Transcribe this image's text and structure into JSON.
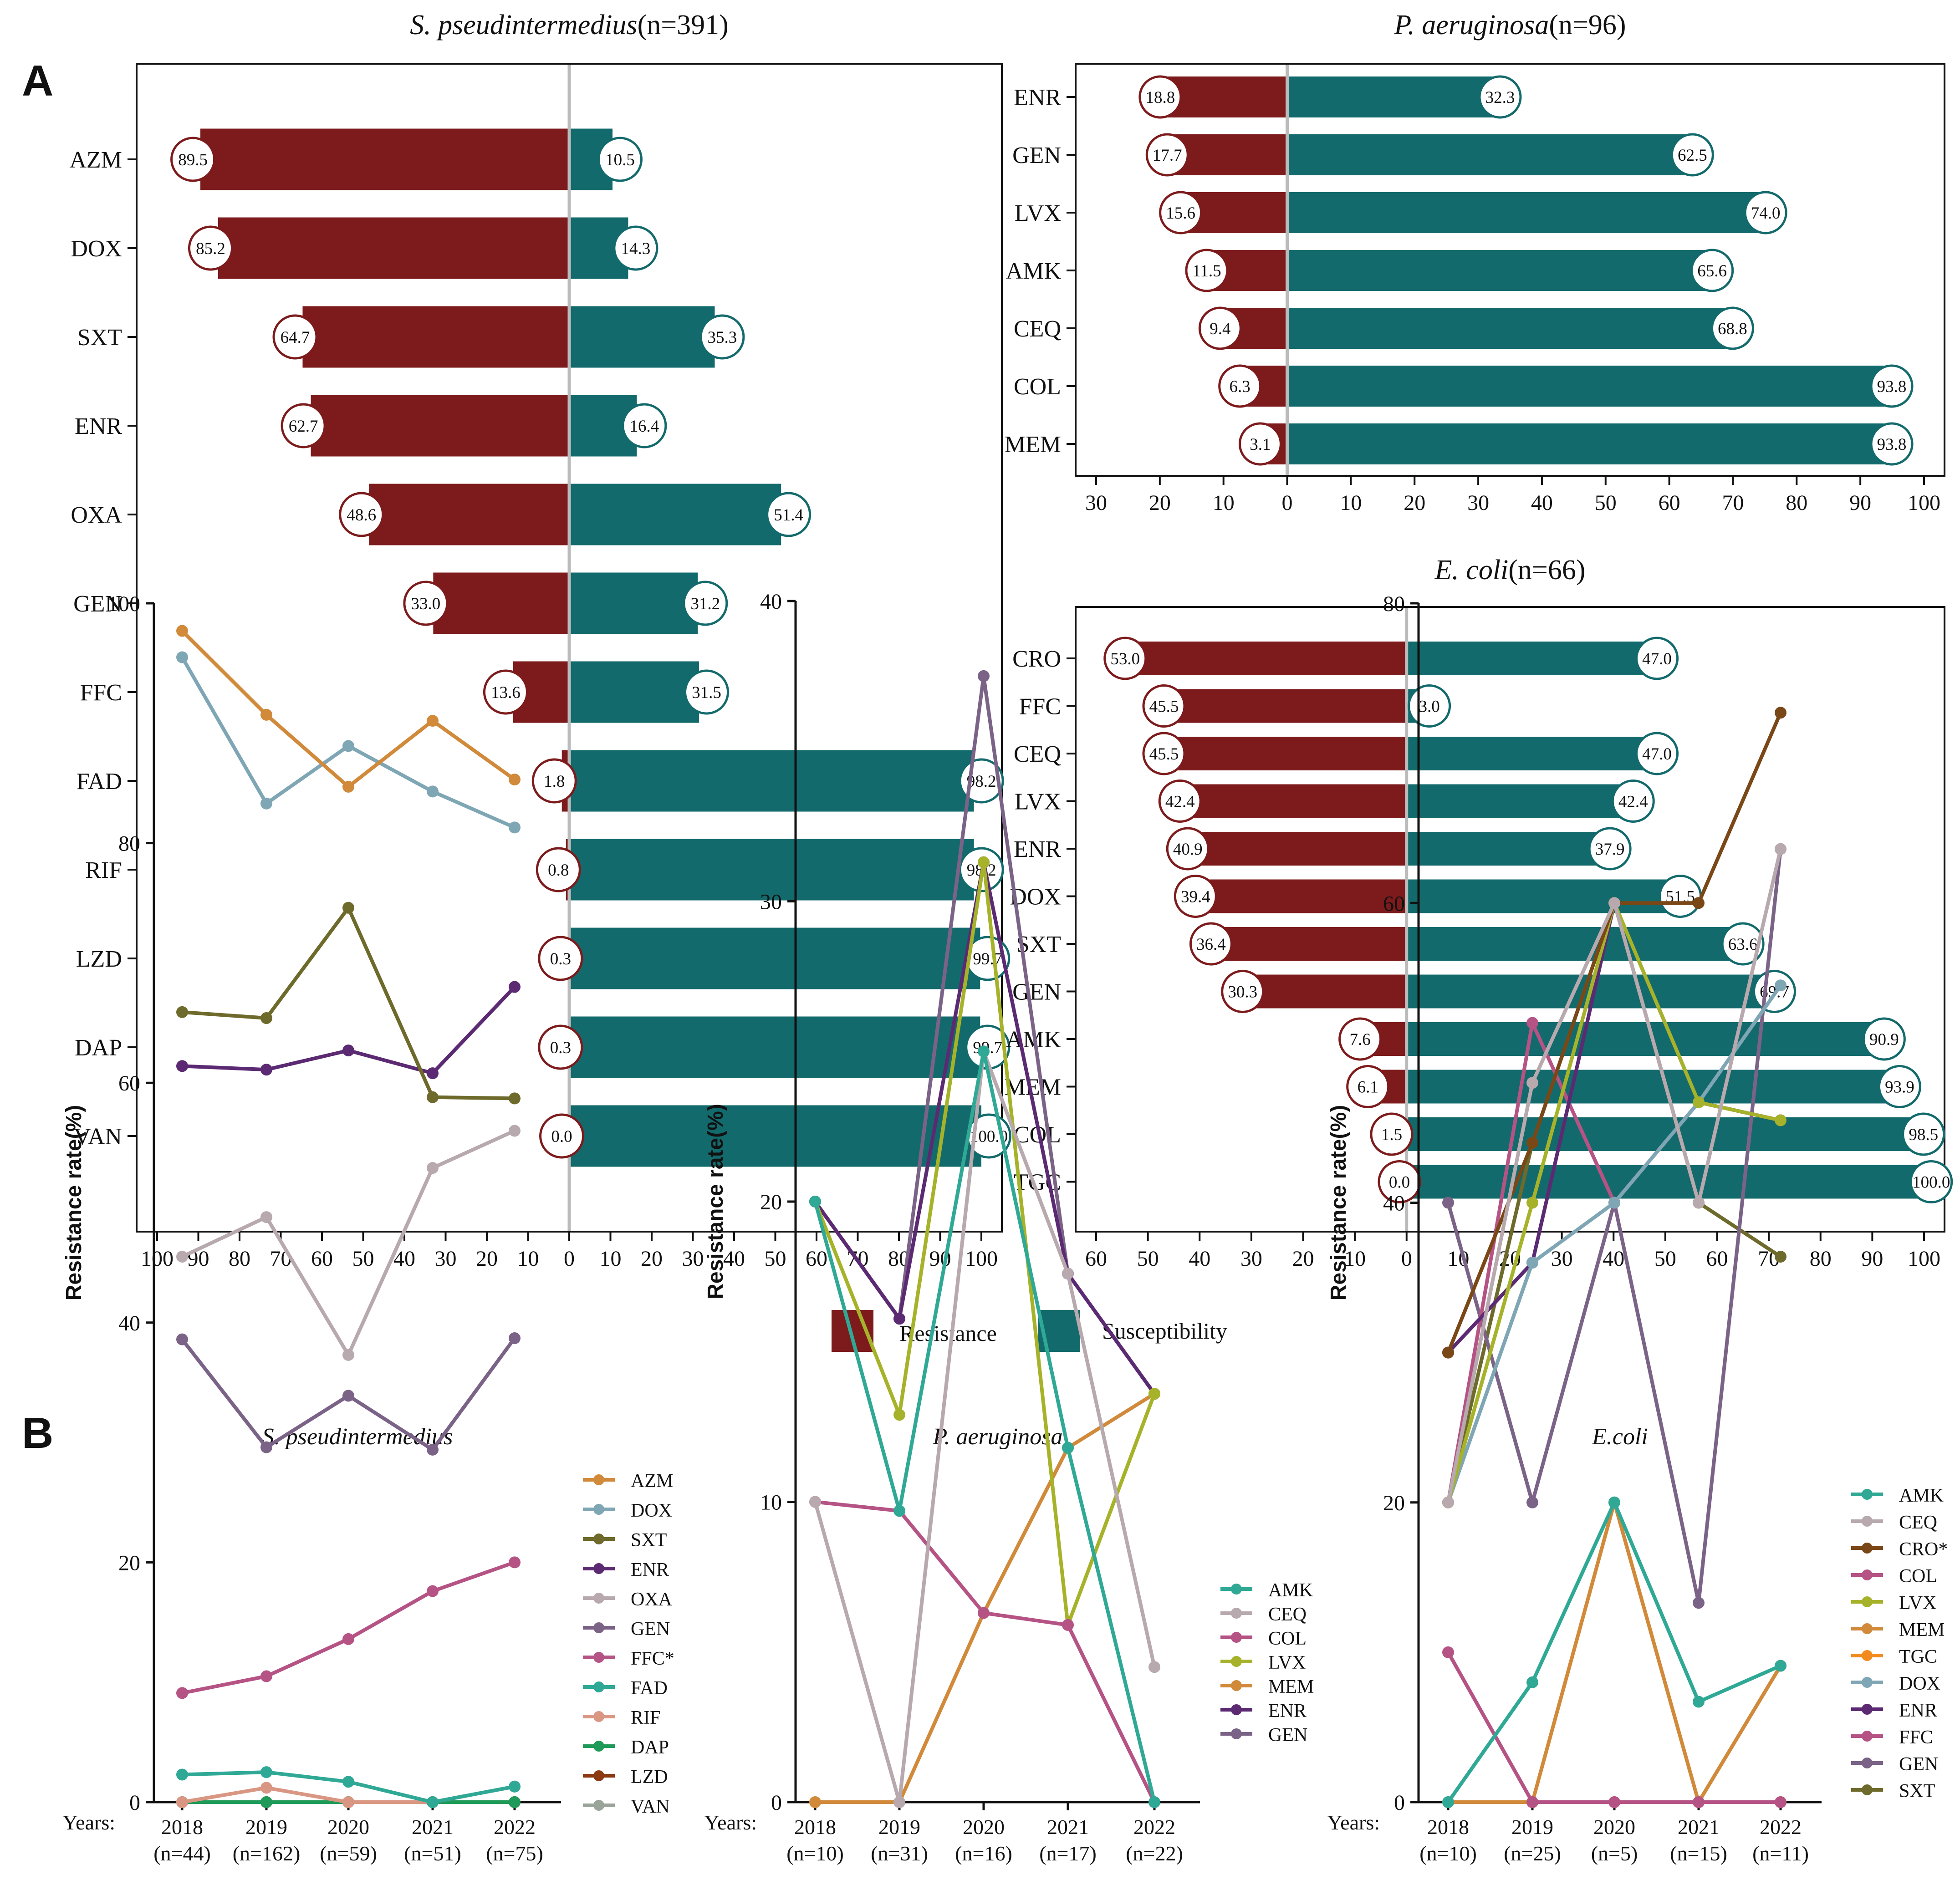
{
  "panel_labels": {
    "a": "A",
    "b": "B"
  },
  "colors": {
    "resistance": "#7d1b1c",
    "susceptibility": "#136a6c",
    "zero_line": "#bbbbbb"
  },
  "legend_a": {
    "resistance": "Resistance",
    "susceptibility": "Susceptibility"
  },
  "chart_data": [
    {
      "id": "a1",
      "type": "bar",
      "orientation": "diverging-horizontal",
      "title_italic": "S. pseudintermedius",
      "title_suffix": "(n=391)",
      "categories": [
        "AZM",
        "DOX",
        "SXT",
        "ENR",
        "OXA",
        "GEN",
        "FFC",
        "FAD",
        "RIF",
        "LZD",
        "DAP",
        "VAN"
      ],
      "series": [
        {
          "name": "Resistance",
          "values": [
            89.5,
            85.2,
            64.7,
            62.7,
            48.6,
            33.0,
            13.6,
            1.8,
            0.8,
            0.3,
            0.3,
            0.0
          ],
          "labels": [
            "89.5",
            "85.2",
            "64.7",
            "62.7",
            "48.6",
            "33.0",
            "13.6",
            "1.8",
            "0.8",
            "0.3",
            "0.3",
            "0.0"
          ]
        },
        {
          "name": "Susceptibility",
          "values": [
            10.5,
            14.3,
            35.3,
            16.4,
            51.4,
            31.2,
            31.5,
            98.2,
            98.2,
            99.7,
            99.7,
            100.0
          ],
          "labels": [
            "10.5",
            "14.3",
            "35.3",
            "16.4",
            "51.4",
            "31.2",
            "31.5",
            "98.2",
            "98.2",
            "99.7",
            "99.7",
            "100.0"
          ]
        }
      ],
      "xlim": [
        -100,
        100
      ],
      "ticks": [
        -100,
        -90,
        -80,
        -70,
        -60,
        -50,
        -40,
        -30,
        -20,
        -10,
        0,
        10,
        20,
        30,
        40,
        50,
        60,
        70,
        80,
        90,
        100
      ],
      "tick_labels": [
        "100",
        "90",
        "80",
        "70",
        "60",
        "50",
        "40",
        "30",
        "20",
        "10",
        "0",
        "10",
        "20",
        "30",
        "40",
        "50",
        "60",
        "70",
        "80",
        "90",
        "100"
      ]
    },
    {
      "id": "a2",
      "type": "bar",
      "orientation": "diverging-horizontal",
      "title_italic": "P. aeruginosa",
      "title_suffix": "(n=96)",
      "categories": [
        "ENR",
        "GEN",
        "LVX",
        "AMK",
        "CEQ",
        "COL",
        "MEM"
      ],
      "series": [
        {
          "name": "Resistance",
          "values": [
            18.8,
            17.7,
            15.6,
            11.5,
            9.4,
            6.3,
            3.1
          ],
          "labels": [
            "18.8",
            "17.7",
            "15.6",
            "11.5",
            "9.4",
            "6.3",
            "3.1"
          ]
        },
        {
          "name": "Susceptibility",
          "values": [
            32.3,
            62.5,
            74.0,
            65.6,
            68.8,
            93.8,
            93.8
          ],
          "labels": [
            "32.3",
            "62.5",
            "74.0",
            "65.6",
            "68.8",
            "93.8",
            "93.8"
          ]
        }
      ],
      "xlim": [
        -30,
        100
      ],
      "ticks": [
        -30,
        -20,
        -10,
        0,
        10,
        20,
        30,
        40,
        50,
        60,
        70,
        80,
        90,
        100
      ],
      "tick_labels": [
        "30",
        "20",
        "10",
        "0",
        "10",
        "20",
        "30",
        "40",
        "50",
        "60",
        "70",
        "80",
        "90",
        "100"
      ]
    },
    {
      "id": "a3",
      "type": "bar",
      "orientation": "diverging-horizontal",
      "title_italic": "E. coli",
      "title_suffix": "(n=66)",
      "categories": [
        "CRO",
        "FFC",
        "CEQ",
        "LVX",
        "ENR",
        "DOX",
        "SXT",
        "GEN",
        "AMK",
        "MEM",
        "COL",
        "TGC"
      ],
      "series": [
        {
          "name": "Resistance",
          "values": [
            53.0,
            45.5,
            45.5,
            42.4,
            40.9,
            39.4,
            36.4,
            30.3,
            7.6,
            6.1,
            1.5,
            0.0
          ],
          "labels": [
            "53.0",
            "45.5",
            "45.5",
            "42.4",
            "40.9",
            "39.4",
            "36.4",
            "30.3",
            "7.6",
            "6.1",
            "1.5",
            "0.0"
          ]
        },
        {
          "name": "Susceptibility",
          "values": [
            47.0,
            3.0,
            47.0,
            42.4,
            37.9,
            51.5,
            63.6,
            69.7,
            90.9,
            93.9,
            98.5,
            100.0
          ],
          "labels": [
            "47.0",
            "3.0",
            "47.0",
            "42.4",
            "37.9",
            "51.5",
            "63.6",
            "69.7",
            "90.9",
            "93.9",
            "98.5",
            "100.0"
          ]
        }
      ],
      "xlim": [
        -60,
        100
      ],
      "ticks": [
        -60,
        -50,
        -40,
        -30,
        -20,
        -10,
        0,
        10,
        20,
        30,
        40,
        50,
        60,
        70,
        80,
        90,
        100
      ],
      "tick_labels": [
        "60",
        "50",
        "40",
        "30",
        "20",
        "10",
        "0",
        "10",
        "20",
        "30",
        "40",
        "50",
        "60",
        "70",
        "80",
        "90",
        "100"
      ]
    },
    {
      "id": "b1",
      "type": "line",
      "title": "S. pseudintermedius",
      "ylabel": "Resistance rate(%)",
      "years_label": "Years:",
      "x": [
        "2018",
        "2019",
        "2020",
        "2021",
        "2022"
      ],
      "x_n": [
        "(n=44)",
        "(n=162)",
        "(n=59)",
        "(n=51)",
        "(n=75)"
      ],
      "ylim": [
        0,
        100
      ],
      "yticks": [
        0,
        20,
        40,
        60,
        80,
        100
      ],
      "series": [
        {
          "name": "AZM",
          "color": "#d1893a",
          "values": [
            97.7,
            90.7,
            84.7,
            90.2,
            85.3
          ]
        },
        {
          "name": "DOX",
          "color": "#7fa6b4",
          "values": [
            95.5,
            83.3,
            88.1,
            84.3,
            81.3
          ]
        },
        {
          "name": "SXT",
          "color": "#6d6a2b",
          "values": [
            65.9,
            65.4,
            74.6,
            58.8,
            58.7
          ]
        },
        {
          "name": "ENR",
          "color": "#5b2a72",
          "values": [
            61.4,
            61.1,
            62.7,
            60.8,
            68.0
          ]
        },
        {
          "name": "OXA",
          "color": "#b7a9ae",
          "values": [
            45.5,
            48.8,
            37.3,
            52.9,
            56.0
          ]
        },
        {
          "name": "GEN",
          "color": "#7b6387",
          "values": [
            38.6,
            29.6,
            33.9,
            29.4,
            38.7
          ]
        },
        {
          "name": "FFC*",
          "color": "#b55385",
          "values": [
            9.1,
            10.5,
            13.6,
            17.6,
            20.0
          ]
        },
        {
          "name": "FAD",
          "color": "#2fa995",
          "values": [
            2.3,
            2.5,
            1.7,
            0.0,
            1.3
          ]
        },
        {
          "name": "RIF",
          "color": "#d99783",
          "values": [
            0.0,
            1.2,
            0.0,
            0.0,
            1.3
          ]
        },
        {
          "name": "DAP",
          "color": "#1f9a58",
          "values": [
            0.0,
            0.0,
            0.0,
            0.0,
            0.0
          ]
        },
        {
          "name": "LZD",
          "color": "#8b3a12",
          "values": [
            0.0,
            0.0,
            0.0,
            0.0,
            0.0
          ]
        },
        {
          "name": "VAN",
          "color": "#9aa49a",
          "values": [
            0.0,
            0.0,
            0.0,
            0.0,
            0.0
          ]
        }
      ]
    },
    {
      "id": "b2",
      "type": "line",
      "title": "P. aeruginosa",
      "ylabel": "Resistance rate(%)",
      "years_label": "Years:",
      "x": [
        "2018",
        "2019",
        "2020",
        "2021",
        "2022"
      ],
      "x_n": [
        "(n=10)",
        "(n=31)",
        "(n=16)",
        "(n=17)",
        "(n=22)"
      ],
      "ylim": [
        0,
        40
      ],
      "yticks": [
        0,
        10,
        20,
        30,
        40
      ],
      "series": [
        {
          "name": "AMK",
          "color": "#2fa995",
          "values": [
            20.0,
            9.7,
            25.0,
            11.8,
            0.0
          ]
        },
        {
          "name": "CEQ",
          "color": "#b7a9ae",
          "values": [
            10.0,
            0.0,
            25.0,
            17.6,
            4.5
          ]
        },
        {
          "name": "COL",
          "color": "#b55385",
          "values": [
            10.0,
            9.7,
            6.3,
            5.9,
            0.0
          ]
        },
        {
          "name": "LVX",
          "color": "#a6b32a",
          "values": [
            20.0,
            12.9,
            31.3,
            5.9,
            13.6
          ]
        },
        {
          "name": "MEM",
          "color": "#d1893a",
          "values": [
            0.0,
            0.0,
            6.3,
            11.8,
            13.6
          ]
        },
        {
          "name": "ENR",
          "color": "#5b2a72",
          "values": [
            20.0,
            16.1,
            31.3,
            17.6,
            13.6
          ]
        },
        {
          "name": "GEN",
          "color": "#7b6387",
          "values": [
            20.0,
            16.1,
            37.5,
            17.6,
            13.6
          ]
        }
      ]
    },
    {
      "id": "b3",
      "type": "line",
      "title": "E.coli",
      "ylabel": "Resistance rate(%)",
      "years_label": "Years:",
      "x": [
        "2018",
        "2019",
        "2020",
        "2021",
        "2022"
      ],
      "x_n": [
        "(n=10)",
        "(n=25)",
        "(n=5)",
        "(n=15)",
        "(n=11)"
      ],
      "ylim": [
        0,
        80
      ],
      "yticks": [
        0,
        20,
        40,
        60,
        80
      ],
      "series": [
        {
          "name": "AMK",
          "color": "#2fa995",
          "values": [
            0.0,
            8.0,
            20.0,
            6.7,
            9.1
          ]
        },
        {
          "name": "CEQ",
          "color": "#b7a9ae",
          "values": [
            20.0,
            48.0,
            60.0,
            40.0,
            63.6
          ]
        },
        {
          "name": "CRO*",
          "color": "#7a4716",
          "values": [
            30.0,
            44.0,
            60.0,
            60.0,
            72.7
          ]
        },
        {
          "name": "COL",
          "color": "#b55385",
          "values": [
            10.0,
            0.0,
            0.0,
            0.0,
            0.0
          ]
        },
        {
          "name": "LVX",
          "color": "#a6b32a",
          "values": [
            20.0,
            40.0,
            60.0,
            46.7,
            45.5
          ]
        },
        {
          "name": "MEM",
          "color": "#d1893a",
          "values": [
            0.0,
            0.0,
            20.0,
            0.0,
            9.1
          ]
        },
        {
          "name": "TGC",
          "color": "#f28a1e",
          "values": [
            0.0,
            0.0,
            0.0,
            0.0,
            0.0
          ]
        },
        {
          "name": "DOX",
          "color": "#7fa6b4",
          "values": [
            20.0,
            36.0,
            40.0,
            46.7,
            54.5
          ]
        },
        {
          "name": "ENR",
          "color": "#5b2a72",
          "values": [
            30.0,
            36.0,
            60.0,
            46.7,
            45.5
          ]
        },
        {
          "name": "FFC",
          "color": "#b55385",
          "values": [
            20.0,
            52.0,
            40.0,
            46.7,
            45.5
          ]
        },
        {
          "name": "GEN",
          "color": "#7b6387",
          "values": [
            40.0,
            20.0,
            40.0,
            13.3,
            63.6
          ]
        },
        {
          "name": "SXT",
          "color": "#6d6a2b",
          "values": [
            20.0,
            44.0,
            60.0,
            40.0,
            36.4
          ]
        }
      ]
    }
  ]
}
